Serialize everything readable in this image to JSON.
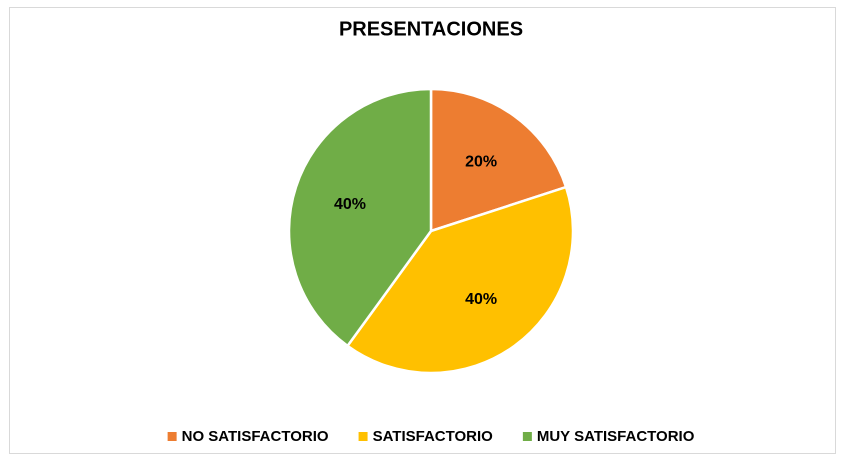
{
  "chart_data": {
    "type": "pie",
    "title": "PRESENTACIONES",
    "categories": [
      "NO SATISFACTORIO",
      "SATISFACTORIO",
      "MUY SATISFACTORIO"
    ],
    "values": [
      20,
      40,
      40
    ],
    "value_labels": [
      "20%",
      "40%",
      "40%"
    ],
    "colors": [
      "#ED7D31",
      "#FFC000",
      "#70AD47"
    ],
    "legend": "bottom"
  }
}
